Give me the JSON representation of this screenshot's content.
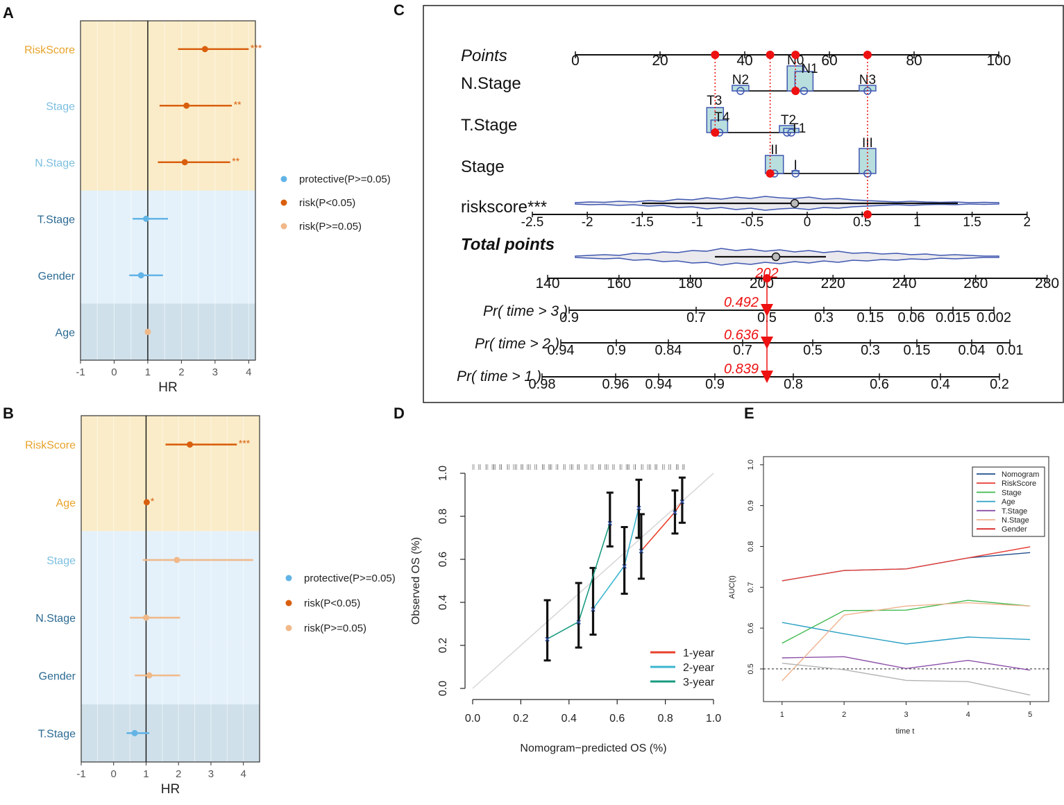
{
  "figure": {
    "panel_letters": [
      "A",
      "B",
      "C",
      "D",
      "E"
    ]
  },
  "colors": {
    "protective": "#62b4e6",
    "risk_sig": "#d95f0e",
    "risk_nonsig": "#f0b98a",
    "band_risk": "#faecc8",
    "band_light": "#e4f1fa",
    "band_dark": "#cfe0ea"
  },
  "chart_data": [
    {
      "panel": "A",
      "type": "forest",
      "xlabel": "HR",
      "xlim": [
        -1,
        4.2
      ],
      "xticks": [
        "-1",
        "0",
        "1",
        "2",
        "3",
        "4"
      ],
      "reference_line": 1,
      "legend": [
        "protective(P>=0.05)",
        "risk(P<0.05)",
        "risk(P>=0.05)"
      ],
      "rows": [
        {
          "label": "RiskScore",
          "hr": 2.7,
          "lo": 1.9,
          "hi": 4.0,
          "class": "risk_sig",
          "sig": "***",
          "band": "band_risk",
          "label_color": "#e8a32a"
        },
        {
          "label": "Stage",
          "hr": 2.15,
          "lo": 1.35,
          "hi": 3.5,
          "class": "risk_sig",
          "sig": "**",
          "band": "band_risk",
          "label_color": "#7cbfe0"
        },
        {
          "label": "N.Stage",
          "hr": 2.1,
          "lo": 1.3,
          "hi": 3.45,
          "class": "risk_sig",
          "sig": "**",
          "band": "band_risk",
          "label_color": "#7cbfe0"
        },
        {
          "label": "T.Stage",
          "hr": 0.95,
          "lo": 0.55,
          "hi": 1.6,
          "class": "protective",
          "sig": "",
          "band": "band_light",
          "label_color": "#2c6a92"
        },
        {
          "label": "Gender",
          "hr": 0.8,
          "lo": 0.45,
          "hi": 1.45,
          "class": "protective",
          "sig": "",
          "band": "band_light",
          "label_color": "#2c6a92"
        },
        {
          "label": "Age",
          "hr": 1.0,
          "lo": 0.95,
          "hi": 1.05,
          "class": "risk_nonsig",
          "sig": "",
          "band": "band_dark",
          "label_color": "#2c6a92"
        }
      ]
    },
    {
      "panel": "B",
      "type": "forest",
      "xlabel": "HR",
      "xlim": [
        -1,
        4.5
      ],
      "xticks": [
        "-1",
        "0",
        "1",
        "2",
        "3",
        "4"
      ],
      "reference_line": 1,
      "legend": [
        "protective(P>=0.05)",
        "risk(P<0.05)",
        "risk(P>=0.05)"
      ],
      "rows": [
        {
          "label": "RiskScore",
          "hr": 2.35,
          "lo": 1.6,
          "hi": 3.8,
          "class": "risk_sig",
          "sig": "***",
          "band": "band_risk",
          "label_color": "#e8a32a"
        },
        {
          "label": "Age",
          "hr": 1.02,
          "lo": 0.97,
          "hi": 1.08,
          "class": "risk_sig",
          "sig": "*",
          "band": "band_risk",
          "label_color": "#e8a32a"
        },
        {
          "label": "Stage",
          "hr": 1.95,
          "lo": 0.9,
          "hi": 4.3,
          "class": "risk_nonsig",
          "sig": "",
          "band": "band_light",
          "label_color": "#7cbfe0"
        },
        {
          "label": "N.Stage",
          "hr": 1.0,
          "lo": 0.5,
          "hi": 2.05,
          "class": "risk_nonsig",
          "sig": "",
          "band": "band_light",
          "label_color": "#2c6a92"
        },
        {
          "label": "Gender",
          "hr": 1.1,
          "lo": 0.65,
          "hi": 2.05,
          "class": "risk_nonsig",
          "sig": "",
          "band": "band_light",
          "label_color": "#2c6a92"
        },
        {
          "label": "T.Stage",
          "hr": 0.65,
          "lo": 0.4,
          "hi": 1.1,
          "class": "protective",
          "sig": "",
          "band": "band_dark",
          "label_color": "#2c6a92"
        }
      ]
    },
    {
      "panel": "C",
      "type": "nomogram",
      "rows": [
        {
          "label": "Points",
          "style": "italic",
          "ticks": [
            "0",
            "20",
            "40",
            "60",
            "80",
            "100"
          ]
        },
        {
          "label": "N.Stage",
          "categories": [
            "N2",
            "N0",
            "N1",
            "N3"
          ],
          "points": [
            39,
            52,
            54,
            69
          ]
        },
        {
          "label": "T.Stage",
          "categories": [
            "T3",
            "T4",
            "T2",
            "T1"
          ],
          "points": [
            33,
            34,
            50,
            51
          ]
        },
        {
          "label": "Stage",
          "categories": [
            "II",
            "I",
            "III"
          ],
          "points": [
            47,
            52,
            69
          ]
        },
        {
          "label": "riskscore***",
          "ticks": [
            "-2.5",
            "-2",
            "-1.5",
            "-1",
            "-0.5",
            "0",
            "0.5",
            "1",
            "1.5",
            "2"
          ]
        },
        {
          "label": "Total points",
          "style": "bold-italic",
          "ticks": [
            "140",
            "160",
            "180",
            "200",
            "220",
            "240",
            "260",
            "280"
          ]
        },
        {
          "label": "Pr( time > 3 )",
          "ticks": [
            "0.9",
            "0.7",
            "0.5",
            "0.3",
            "0.15",
            "0.06",
            "0.015",
            "0.002"
          ]
        },
        {
          "label": "Pr( time > 2 )",
          "ticks": [
            "0.94",
            "0.9",
            "0.84",
            "0.7",
            "0.5",
            "0.3",
            "0.15",
            "0.04",
            "0.01"
          ]
        },
        {
          "label": "Pr( time > 1 )",
          "ticks": [
            "0.98",
            "0.96",
            "0.94",
            "0.9",
            "0.8",
            "0.6",
            "0.4",
            "0.2"
          ]
        }
      ],
      "selected_points": [
        33,
        46,
        52,
        69
      ],
      "total_points": "202",
      "predicted": {
        "t3": "0.492",
        "t2": "0.636",
        "t1": "0.839"
      }
    },
    {
      "panel": "D",
      "type": "calibration",
      "xlabel": "Nomogram−predicted OS (%)",
      "ylabel": "Observed OS (%)",
      "xlim": [
        0,
        1
      ],
      "ylim": [
        0,
        1
      ],
      "xticks": [
        "0.0",
        "0.2",
        "0.4",
        "0.6",
        "0.8",
        "1.0"
      ],
      "yticks": [
        "0.0",
        "0.2",
        "0.4",
        "0.6",
        "0.8",
        "1.0"
      ],
      "legend": [
        "1-year",
        "2-year",
        "3-year"
      ],
      "series": [
        {
          "name": "1-year",
          "color": "#e8412c",
          "x": [
            0.7,
            0.84,
            0.87
          ],
          "y": [
            0.64,
            0.82,
            0.87
          ],
          "lo": [
            0.51,
            0.72,
            0.77
          ],
          "hi": [
            0.81,
            0.92,
            0.98
          ]
        },
        {
          "name": "2-year",
          "color": "#3cb6cf",
          "x": [
            0.5,
            0.63,
            0.69
          ],
          "y": [
            0.37,
            0.57,
            0.84
          ],
          "lo": [
            0.25,
            0.44,
            0.7
          ],
          "hi": [
            0.56,
            0.75,
            0.97
          ]
        },
        {
          "name": "3-year",
          "color": "#1a9b80",
          "x": [
            0.31,
            0.44,
            0.57
          ],
          "y": [
            0.23,
            0.31,
            0.77
          ],
          "lo": [
            0.13,
            0.19,
            0.66
          ],
          "hi": [
            0.41,
            0.49,
            0.91
          ]
        }
      ]
    },
    {
      "panel": "E",
      "type": "line",
      "xlabel": "time t",
      "ylabel": "AUC(t)",
      "xlim": [
        0.7,
        5.3
      ],
      "ylim": [
        0.42,
        1.02
      ],
      "xticks": [
        "1",
        "2",
        "3",
        "4",
        "5"
      ],
      "yticks": [
        "0.5",
        "0.6",
        "0.7",
        "0.8",
        "0.9",
        "1.0"
      ],
      "x": [
        1,
        2,
        3,
        4,
        5
      ],
      "reference_line": 0.5,
      "series": [
        {
          "name": "Nomogram",
          "color": "#1f4e8c",
          "values": [
            0.716,
            0.741,
            0.745,
            0.772,
            0.785
          ]
        },
        {
          "name": "RiskScore",
          "color": "#e8413a",
          "values": [
            0.716,
            0.741,
            0.745,
            0.772,
            0.799
          ]
        },
        {
          "name": "Stage",
          "color": "#3fb94e",
          "values": [
            0.563,
            0.643,
            0.644,
            0.668,
            0.654
          ]
        },
        {
          "name": "Age",
          "color": "#2a9fc4",
          "values": [
            0.614,
            0.586,
            0.561,
            0.578,
            0.572
          ]
        },
        {
          "name": "T.Stage",
          "color": "#8b4fa8",
          "values": [
            0.527,
            0.53,
            0.501,
            0.521,
            0.497
          ]
        },
        {
          "name": "N.Stage",
          "color": "#eeb28d",
          "values": [
            0.471,
            0.632,
            0.654,
            0.662,
            0.654
          ]
        },
        {
          "name": "Gender",
          "color": "#b3b3b3",
          "values": [
            0.514,
            0.498,
            0.472,
            0.469,
            0.436
          ],
          "legend_color": "#d92727"
        }
      ]
    }
  ]
}
